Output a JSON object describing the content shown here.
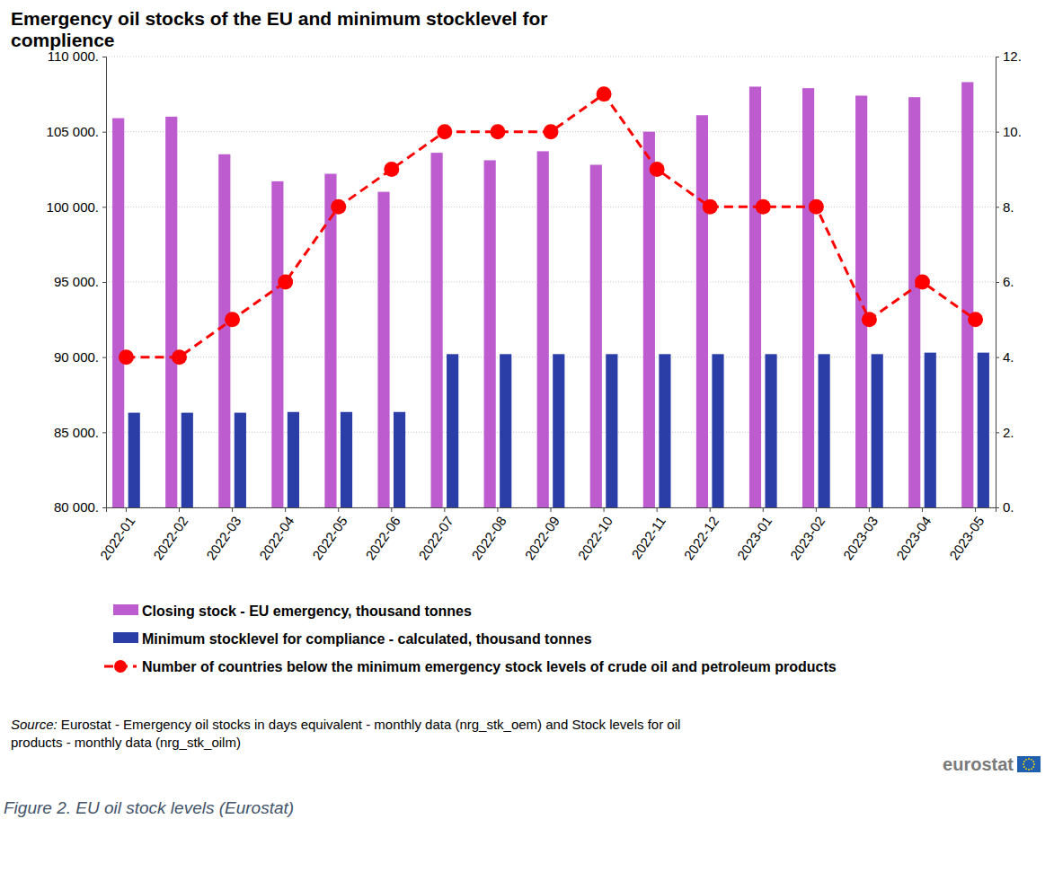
{
  "chart_data": {
    "type": "bar",
    "title": "Emergency oil stocks of the EU and minimum stocklevel for complience",
    "categories": [
      "2022-01",
      "2022-02",
      "2022-03",
      "2022-04",
      "2022-05",
      "2022-06",
      "2022-07",
      "2022-08",
      "2022-09",
      "2022-10",
      "2022-11",
      "2022-12",
      "2023-01",
      "2023-02",
      "2023-03",
      "2023-04",
      "2023-05"
    ],
    "series": [
      {
        "name": "Closing stock - EU emergency, thousand tonnes",
        "type": "bar",
        "color": "#bd5ccf",
        "values": [
          105900,
          106000,
          103500,
          101700,
          102200,
          101000,
          103600,
          103100,
          103700,
          102800,
          105000,
          106100,
          108000,
          107900,
          107400,
          107300,
          108300
        ]
      },
      {
        "name": "Minimum stocklevel for compliance - calculated, thousand tonnes",
        "type": "bar",
        "color": "#2b3ea8",
        "values": [
          86300,
          86300,
          86300,
          86350,
          86350,
          86350,
          90200,
          90200,
          90200,
          90200,
          90200,
          90200,
          90200,
          90200,
          90200,
          90300,
          90300
        ]
      },
      {
        "name": "Number of countries below the minimum emergency stock levels of crude oil and petroleum products",
        "type": "line",
        "axis": "y2",
        "color": "#ff0000",
        "marker": "circle",
        "line_style": "dashed",
        "values": [
          4,
          4,
          5,
          6,
          8,
          9,
          10,
          10,
          10,
          11,
          9,
          8,
          8,
          8,
          5,
          6,
          5
        ]
      }
    ],
    "ylim": [
      80000,
      110000
    ],
    "yticks": [
      {
        "value": 80000,
        "label": "80 000."
      },
      {
        "value": 85000,
        "label": "85 000."
      },
      {
        "value": 90000,
        "label": "90 000."
      },
      {
        "value": 95000,
        "label": "95 000."
      },
      {
        "value": 100000,
        "label": "100 000."
      },
      {
        "value": 105000,
        "label": "105 000."
      },
      {
        "value": 110000,
        "label": "110 000."
      }
    ],
    "y2lim": [
      0,
      12
    ],
    "y2ticks": [
      {
        "value": 0,
        "label": "0."
      },
      {
        "value": 2,
        "label": "2."
      },
      {
        "value": 4,
        "label": "4."
      },
      {
        "value": 6,
        "label": "6."
      },
      {
        "value": 8,
        "label": "8."
      },
      {
        "value": 10,
        "label": "10."
      },
      {
        "value": 12,
        "label": "12."
      }
    ],
    "grid": true,
    "legend": "bottom",
    "source": [
      "Source: Eurostat - Emergency oil stocks in days equivalent - monthly data (nrg_stk_oem) and Stock levels for oil",
      "products - monthly data (nrg_stk_oilm)"
    ],
    "logo": "eurostat",
    "caption": "Figure 2. EU oil stock levels (Eurostat)"
  }
}
